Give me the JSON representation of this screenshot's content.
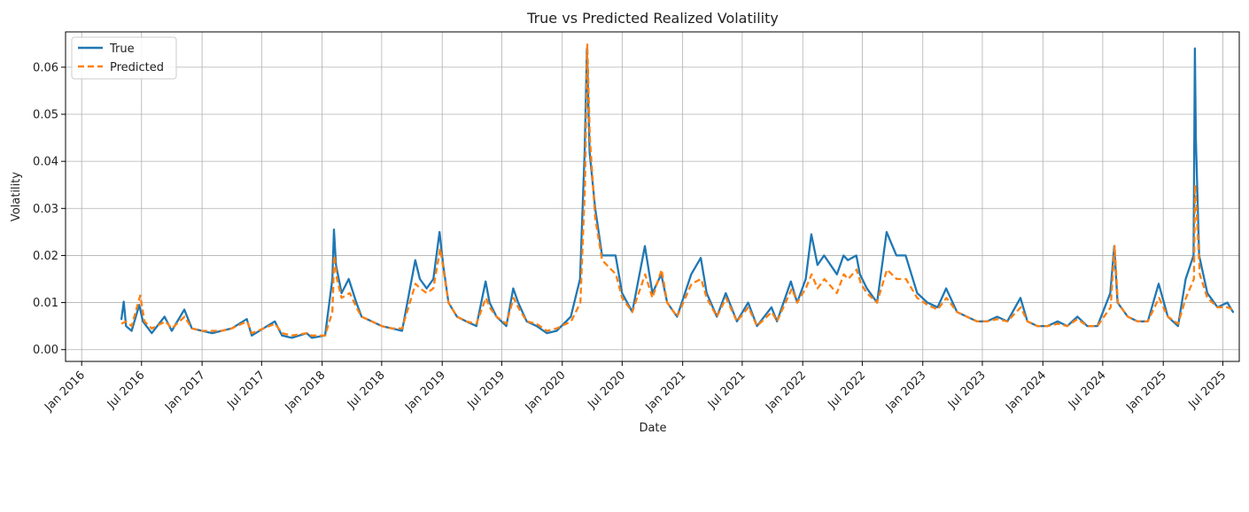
{
  "chart_data": {
    "type": "line",
    "title": "True vs Predicted Realized Volatility",
    "xlabel": "Date",
    "ylabel": "Volatility",
    "xlim": [
      "2015-11-13",
      "2025-08-20"
    ],
    "ylim": [
      -0.0025,
      0.0675
    ],
    "yticks": [
      0.0,
      0.01,
      0.02,
      0.03,
      0.04,
      0.05,
      0.06
    ],
    "ytick_labels": [
      "0.00",
      "0.01",
      "0.02",
      "0.03",
      "0.04",
      "0.05",
      "0.06"
    ],
    "xticks": [
      "2016-01-01",
      "2016-07-01",
      "2017-01-01",
      "2017-07-01",
      "2018-01-01",
      "2018-07-01",
      "2019-01-01",
      "2019-07-01",
      "2020-01-01",
      "2020-07-01",
      "2021-01-01",
      "2021-07-01",
      "2022-01-01",
      "2022-07-01",
      "2023-01-01",
      "2023-07-01",
      "2024-01-01",
      "2024-07-01",
      "2025-01-01",
      "2025-07-01"
    ],
    "xtick_labels": [
      "Jan 2016",
      "Jul 2016",
      "Jan 2017",
      "Jul 2017",
      "Jan 2018",
      "Jul 2018",
      "Jan 2019",
      "Jul 2019",
      "Jan 2020",
      "Jul 2020",
      "Jan 2021",
      "Jul 2021",
      "Jan 2022",
      "Jul 2022",
      "Jan 2023",
      "Jul 2023",
      "Jan 2024",
      "Jul 2024",
      "Jan 2025",
      "Jul 2025"
    ],
    "grid": true,
    "legend_position": "top-left",
    "series": [
      {
        "name": "True",
        "color": "#1f77b4",
        "style": "solid",
        "points": [
          [
            "2016-05-01",
            0.0065
          ],
          [
            "2016-05-08",
            0.0102
          ],
          [
            "2016-05-15",
            0.005
          ],
          [
            "2016-06-01",
            0.004
          ],
          [
            "2016-06-24",
            0.0095
          ],
          [
            "2016-07-05",
            0.006
          ],
          [
            "2016-08-01",
            0.0035
          ],
          [
            "2016-09-09",
            0.007
          ],
          [
            "2016-10-01",
            0.004
          ],
          [
            "2016-11-08",
            0.0085
          ],
          [
            "2016-12-01",
            0.0045
          ],
          [
            "2017-01-01",
            0.004
          ],
          [
            "2017-02-01",
            0.0035
          ],
          [
            "2017-03-01",
            0.004
          ],
          [
            "2017-04-01",
            0.0045
          ],
          [
            "2017-05-17",
            0.0065
          ],
          [
            "2017-06-01",
            0.003
          ],
          [
            "2017-08-10",
            0.006
          ],
          [
            "2017-09-01",
            0.003
          ],
          [
            "2017-10-01",
            0.0025
          ],
          [
            "2017-11-15",
            0.0035
          ],
          [
            "2017-12-01",
            0.0025
          ],
          [
            "2018-01-10",
            0.003
          ],
          [
            "2018-02-01",
            0.015
          ],
          [
            "2018-02-06",
            0.0255
          ],
          [
            "2018-02-12",
            0.018
          ],
          [
            "2018-03-01",
            0.012
          ],
          [
            "2018-03-23",
            0.015
          ],
          [
            "2018-04-15",
            0.01
          ],
          [
            "2018-05-01",
            0.007
          ],
          [
            "2018-06-01",
            0.006
          ],
          [
            "2018-07-01",
            0.005
          ],
          [
            "2018-08-01",
            0.0045
          ],
          [
            "2018-09-01",
            0.004
          ],
          [
            "2018-10-11",
            0.019
          ],
          [
            "2018-10-25",
            0.015
          ],
          [
            "2018-11-15",
            0.013
          ],
          [
            "2018-12-05",
            0.015
          ],
          [
            "2018-12-24",
            0.025
          ],
          [
            "2019-01-04",
            0.018
          ],
          [
            "2019-01-20",
            0.01
          ],
          [
            "2019-02-15",
            0.007
          ],
          [
            "2019-03-15",
            0.006
          ],
          [
            "2019-04-15",
            0.005
          ],
          [
            "2019-05-13",
            0.0145
          ],
          [
            "2019-05-25",
            0.01
          ],
          [
            "2019-06-15",
            0.007
          ],
          [
            "2019-07-15",
            0.005
          ],
          [
            "2019-08-05",
            0.013
          ],
          [
            "2019-08-20",
            0.01
          ],
          [
            "2019-09-15",
            0.006
          ],
          [
            "2019-10-15",
            0.005
          ],
          [
            "2019-11-15",
            0.0035
          ],
          [
            "2019-12-15",
            0.004
          ],
          [
            "2020-01-27",
            0.007
          ],
          [
            "2020-02-24",
            0.015
          ],
          [
            "2020-03-09",
            0.042
          ],
          [
            "2020-03-16",
            0.064
          ],
          [
            "2020-03-24",
            0.042
          ],
          [
            "2020-04-10",
            0.03
          ],
          [
            "2020-05-01",
            0.02
          ],
          [
            "2020-06-11",
            0.02
          ],
          [
            "2020-07-01",
            0.012
          ],
          [
            "2020-08-01",
            0.008
          ],
          [
            "2020-09-08",
            0.022
          ],
          [
            "2020-10-01",
            0.012
          ],
          [
            "2020-10-28",
            0.016
          ],
          [
            "2020-11-15",
            0.01
          ],
          [
            "2020-12-15",
            0.007
          ],
          [
            "2021-01-27",
            0.016
          ],
          [
            "2021-02-25",
            0.0195
          ],
          [
            "2021-03-15",
            0.012
          ],
          [
            "2021-04-15",
            0.007
          ],
          [
            "2021-05-12",
            0.012
          ],
          [
            "2021-06-15",
            0.006
          ],
          [
            "2021-07-19",
            0.01
          ],
          [
            "2021-08-15",
            0.005
          ],
          [
            "2021-09-28",
            0.009
          ],
          [
            "2021-10-15",
            0.006
          ],
          [
            "2021-11-26",
            0.0145
          ],
          [
            "2021-12-15",
            0.01
          ],
          [
            "2022-01-10",
            0.015
          ],
          [
            "2022-01-27",
            0.0245
          ],
          [
            "2022-02-15",
            0.018
          ],
          [
            "2022-03-07",
            0.02
          ],
          [
            "2022-04-15",
            0.016
          ],
          [
            "2022-05-05",
            0.02
          ],
          [
            "2022-05-18",
            0.019
          ],
          [
            "2022-06-13",
            0.02
          ],
          [
            "2022-06-24",
            0.016
          ],
          [
            "2022-07-15",
            0.013
          ],
          [
            "2022-08-15",
            0.01
          ],
          [
            "2022-09-13",
            0.025
          ],
          [
            "2022-10-13",
            0.02
          ],
          [
            "2022-11-10",
            0.02
          ],
          [
            "2022-12-15",
            0.012
          ],
          [
            "2023-01-15",
            0.01
          ],
          [
            "2023-02-15",
            0.009
          ],
          [
            "2023-03-13",
            0.013
          ],
          [
            "2023-04-15",
            0.008
          ],
          [
            "2023-05-15",
            0.007
          ],
          [
            "2023-06-15",
            0.006
          ],
          [
            "2023-07-15",
            0.006
          ],
          [
            "2023-08-15",
            0.007
          ],
          [
            "2023-09-15",
            0.006
          ],
          [
            "2023-10-25",
            0.011
          ],
          [
            "2023-11-15",
            0.006
          ],
          [
            "2023-12-15",
            0.005
          ],
          [
            "2024-01-15",
            0.005
          ],
          [
            "2024-02-15",
            0.006
          ],
          [
            "2024-03-15",
            0.005
          ],
          [
            "2024-04-15",
            0.007
          ],
          [
            "2024-05-15",
            0.005
          ],
          [
            "2024-06-15",
            0.005
          ],
          [
            "2024-07-24",
            0.012
          ],
          [
            "2024-08-05",
            0.022
          ],
          [
            "2024-08-15",
            0.01
          ],
          [
            "2024-09-15",
            0.007
          ],
          [
            "2024-10-15",
            0.006
          ],
          [
            "2024-11-15",
            0.006
          ],
          [
            "2024-12-18",
            0.014
          ],
          [
            "2025-01-15",
            0.007
          ],
          [
            "2025-02-15",
            0.005
          ],
          [
            "2025-03-10",
            0.015
          ],
          [
            "2025-04-03",
            0.02
          ],
          [
            "2025-04-07",
            0.064
          ],
          [
            "2025-04-10",
            0.045
          ],
          [
            "2025-04-20",
            0.02
          ],
          [
            "2025-05-15",
            0.012
          ],
          [
            "2025-06-15",
            0.009
          ],
          [
            "2025-07-15",
            0.01
          ],
          [
            "2025-08-01",
            0.008
          ]
        ]
      },
      {
        "name": "Predicted",
        "color": "#ff7f0e",
        "style": "dashed",
        "points": [
          [
            "2016-05-01",
            0.0055
          ],
          [
            "2016-05-15",
            0.006
          ],
          [
            "2016-06-01",
            0.005
          ],
          [
            "2016-06-27",
            0.0115
          ],
          [
            "2016-07-10",
            0.006
          ],
          [
            "2016-08-01",
            0.0045
          ],
          [
            "2016-09-12",
            0.006
          ],
          [
            "2016-10-01",
            0.0045
          ],
          [
            "2016-11-09",
            0.007
          ],
          [
            "2016-12-01",
            0.0045
          ],
          [
            "2017-01-01",
            0.004
          ],
          [
            "2017-02-01",
            0.004
          ],
          [
            "2017-03-01",
            0.004
          ],
          [
            "2017-04-01",
            0.0045
          ],
          [
            "2017-05-18",
            0.006
          ],
          [
            "2017-06-01",
            0.0035
          ],
          [
            "2017-08-11",
            0.0055
          ],
          [
            "2017-09-01",
            0.0035
          ],
          [
            "2017-10-01",
            0.003
          ],
          [
            "2017-11-15",
            0.0035
          ],
          [
            "2017-12-01",
            0.003
          ],
          [
            "2018-01-10",
            0.003
          ],
          [
            "2018-02-01",
            0.008
          ],
          [
            "2018-02-07",
            0.02
          ],
          [
            "2018-02-15",
            0.015
          ],
          [
            "2018-03-01",
            0.011
          ],
          [
            "2018-03-26",
            0.012
          ],
          [
            "2018-04-15",
            0.009
          ],
          [
            "2018-05-01",
            0.007
          ],
          [
            "2018-06-01",
            0.006
          ],
          [
            "2018-07-01",
            0.005
          ],
          [
            "2018-08-01",
            0.0045
          ],
          [
            "2018-09-01",
            0.0045
          ],
          [
            "2018-10-12",
            0.014
          ],
          [
            "2018-10-26",
            0.013
          ],
          [
            "2018-11-15",
            0.012
          ],
          [
            "2018-12-05",
            0.013
          ],
          [
            "2018-12-26",
            0.0215
          ],
          [
            "2019-01-07",
            0.016
          ],
          [
            "2019-01-20",
            0.01
          ],
          [
            "2019-02-15",
            0.007
          ],
          [
            "2019-03-15",
            0.006
          ],
          [
            "2019-04-15",
            0.0055
          ],
          [
            "2019-05-14",
            0.011
          ],
          [
            "2019-05-25",
            0.009
          ],
          [
            "2019-06-15",
            0.007
          ],
          [
            "2019-07-15",
            0.0055
          ],
          [
            "2019-08-06",
            0.011
          ],
          [
            "2019-08-20",
            0.009
          ],
          [
            "2019-09-15",
            0.006
          ],
          [
            "2019-10-15",
            0.0055
          ],
          [
            "2019-11-15",
            0.004
          ],
          [
            "2019-12-15",
            0.0045
          ],
          [
            "2020-01-28",
            0.006
          ],
          [
            "2020-02-25",
            0.01
          ],
          [
            "2020-03-10",
            0.035
          ],
          [
            "2020-03-17",
            0.0648
          ],
          [
            "2020-03-25",
            0.045
          ],
          [
            "2020-04-10",
            0.028
          ],
          [
            "2020-05-01",
            0.019
          ],
          [
            "2020-06-12",
            0.016
          ],
          [
            "2020-07-01",
            0.011
          ],
          [
            "2020-08-01",
            0.008
          ],
          [
            "2020-09-09",
            0.016
          ],
          [
            "2020-10-01",
            0.011
          ],
          [
            "2020-10-29",
            0.017
          ],
          [
            "2020-11-15",
            0.01
          ],
          [
            "2020-12-15",
            0.007
          ],
          [
            "2021-01-28",
            0.014
          ],
          [
            "2021-02-26",
            0.015
          ],
          [
            "2021-03-15",
            0.011
          ],
          [
            "2021-04-15",
            0.007
          ],
          [
            "2021-05-13",
            0.011
          ],
          [
            "2021-06-15",
            0.006
          ],
          [
            "2021-07-20",
            0.009
          ],
          [
            "2021-08-15",
            0.005
          ],
          [
            "2021-09-29",
            0.008
          ],
          [
            "2021-10-15",
            0.006
          ],
          [
            "2021-11-29",
            0.013
          ],
          [
            "2021-12-15",
            0.01
          ],
          [
            "2022-01-10",
            0.013
          ],
          [
            "2022-01-28",
            0.016
          ],
          [
            "2022-02-15",
            0.013
          ],
          [
            "2022-03-08",
            0.015
          ],
          [
            "2022-04-15",
            0.012
          ],
          [
            "2022-05-06",
            0.016
          ],
          [
            "2022-05-19",
            0.015
          ],
          [
            "2022-06-14",
            0.017
          ],
          [
            "2022-06-27",
            0.014
          ],
          [
            "2022-07-15",
            0.012
          ],
          [
            "2022-08-15",
            0.01
          ],
          [
            "2022-09-14",
            0.017
          ],
          [
            "2022-10-14",
            0.015
          ],
          [
            "2022-11-11",
            0.015
          ],
          [
            "2022-12-15",
            0.011
          ],
          [
            "2023-01-15",
            0.0095
          ],
          [
            "2023-02-15",
            0.0085
          ],
          [
            "2023-03-14",
            0.011
          ],
          [
            "2023-04-15",
            0.008
          ],
          [
            "2023-05-15",
            0.007
          ],
          [
            "2023-06-15",
            0.006
          ],
          [
            "2023-07-15",
            0.006
          ],
          [
            "2023-08-15",
            0.0065
          ],
          [
            "2023-09-15",
            0.006
          ],
          [
            "2023-10-26",
            0.009
          ],
          [
            "2023-11-15",
            0.006
          ],
          [
            "2023-12-15",
            0.005
          ],
          [
            "2024-01-15",
            0.005
          ],
          [
            "2024-02-15",
            0.0055
          ],
          [
            "2024-03-15",
            0.005
          ],
          [
            "2024-04-15",
            0.0065
          ],
          [
            "2024-05-15",
            0.005
          ],
          [
            "2024-06-15",
            0.005
          ],
          [
            "2024-07-25",
            0.009
          ],
          [
            "2024-08-06",
            0.022
          ],
          [
            "2024-08-16",
            0.01
          ],
          [
            "2024-09-15",
            0.007
          ],
          [
            "2024-10-15",
            0.006
          ],
          [
            "2024-11-15",
            0.006
          ],
          [
            "2024-12-19",
            0.011
          ],
          [
            "2025-01-15",
            0.007
          ],
          [
            "2025-02-15",
            0.0055
          ],
          [
            "2025-03-11",
            0.011
          ],
          [
            "2025-04-04",
            0.015
          ],
          [
            "2025-04-08",
            0.035
          ],
          [
            "2025-04-12",
            0.03
          ],
          [
            "2025-04-22",
            0.016
          ],
          [
            "2025-05-15",
            0.011
          ],
          [
            "2025-06-15",
            0.009
          ],
          [
            "2025-07-15",
            0.009
          ],
          [
            "2025-08-01",
            0.0085
          ]
        ]
      }
    ]
  }
}
